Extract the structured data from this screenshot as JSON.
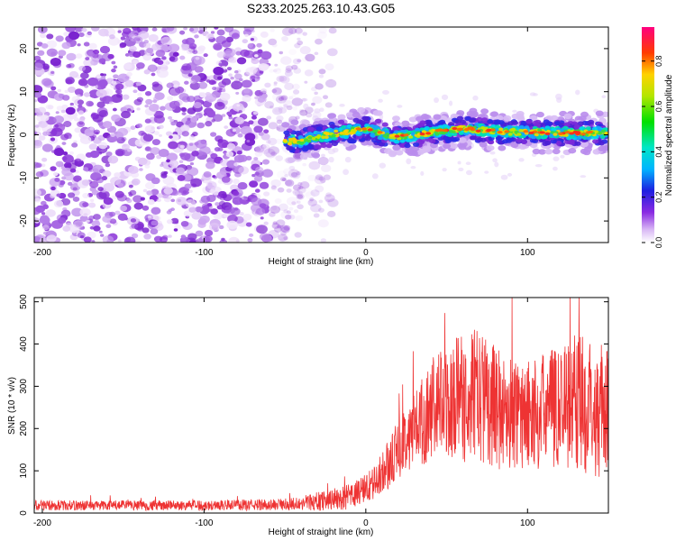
{
  "figure": {
    "title": "S233.2025.263.10.43.G05"
  },
  "chart_data": [
    {
      "type": "heatmap",
      "xlabel": "Height of straight line (km)",
      "ylabel": "Frequency (Hz)",
      "xlim": [
        -205,
        150
      ],
      "ylim": [
        -25,
        25
      ],
      "xticks": [
        -200,
        -100,
        0,
        100
      ],
      "yticks": [
        -20,
        -10,
        0,
        10,
        20
      ],
      "colorbar": {
        "label": "Normalized spectral amplitude",
        "range": [
          0,
          0.95
        ],
        "ticks": [
          "0.0",
          "0.2",
          "0.4",
          "0.6",
          "0.8"
        ],
        "colormap": "white-violet-blue-cyan-green-yellow-red-magenta"
      },
      "features": {
        "noise_region": [
          -205,
          -40
        ],
        "signal_onset_km": -50,
        "tone_frequency_hz_at": [
          {
            "x": -50,
            "y": -1.5
          },
          {
            "x": -40,
            "y": -1.5
          },
          {
            "x": -30,
            "y": -0.5
          },
          {
            "x": -10,
            "y": 0.8
          },
          {
            "x": 0,
            "y": 1.5
          },
          {
            "x": 10,
            "y": 0.3
          },
          {
            "x": 20,
            "y": -0.5
          },
          {
            "x": 40,
            "y": 0.5
          },
          {
            "x": 60,
            "y": 1.5
          },
          {
            "x": 80,
            "y": 0.8
          },
          {
            "x": 100,
            "y": 0.6
          },
          {
            "x": 120,
            "y": 0.4
          },
          {
            "x": 140,
            "y": 0.4
          },
          {
            "x": 150,
            "y": 0.6
          }
        ]
      },
      "grid": false
    },
    {
      "type": "line",
      "xlabel": "Height of straight line (km)",
      "ylabel": "SNR (10 * v/v)",
      "xlim": [
        -205,
        150
      ],
      "ylim": [
        0,
        510
      ],
      "xticks": [
        -200,
        -100,
        0,
        100
      ],
      "yticks": [
        0,
        100,
        200,
        300,
        400,
        500
      ],
      "series": [
        {
          "color": "#ee3333",
          "envelope": [
            {
              "x": -205,
              "mean": 18,
              "spread": 12
            },
            {
              "x": -100,
              "mean": 18,
              "spread": 12
            },
            {
              "x": -50,
              "mean": 20,
              "spread": 14
            },
            {
              "x": -30,
              "mean": 28,
              "spread": 22
            },
            {
              "x": -10,
              "mean": 38,
              "spread": 30
            },
            {
              "x": 5,
              "mean": 70,
              "spread": 40
            },
            {
              "x": 15,
              "mean": 120,
              "spread": 60
            },
            {
              "x": 25,
              "mean": 180,
              "spread": 80
            },
            {
              "x": 40,
              "mean": 240,
              "spread": 120
            },
            {
              "x": 55,
              "mean": 270,
              "spread": 150
            },
            {
              "x": 70,
              "mean": 280,
              "spread": 160
            },
            {
              "x": 85,
              "mean": 240,
              "spread": 140
            },
            {
              "x": 100,
              "mean": 230,
              "spread": 130
            },
            {
              "x": 115,
              "mean": 250,
              "spread": 140
            },
            {
              "x": 130,
              "mean": 270,
              "spread": 170
            },
            {
              "x": 145,
              "mean": 240,
              "spread": 160
            },
            {
              "x": 150,
              "mean": 240,
              "spread": 150
            }
          ]
        }
      ],
      "grid": false
    }
  ]
}
